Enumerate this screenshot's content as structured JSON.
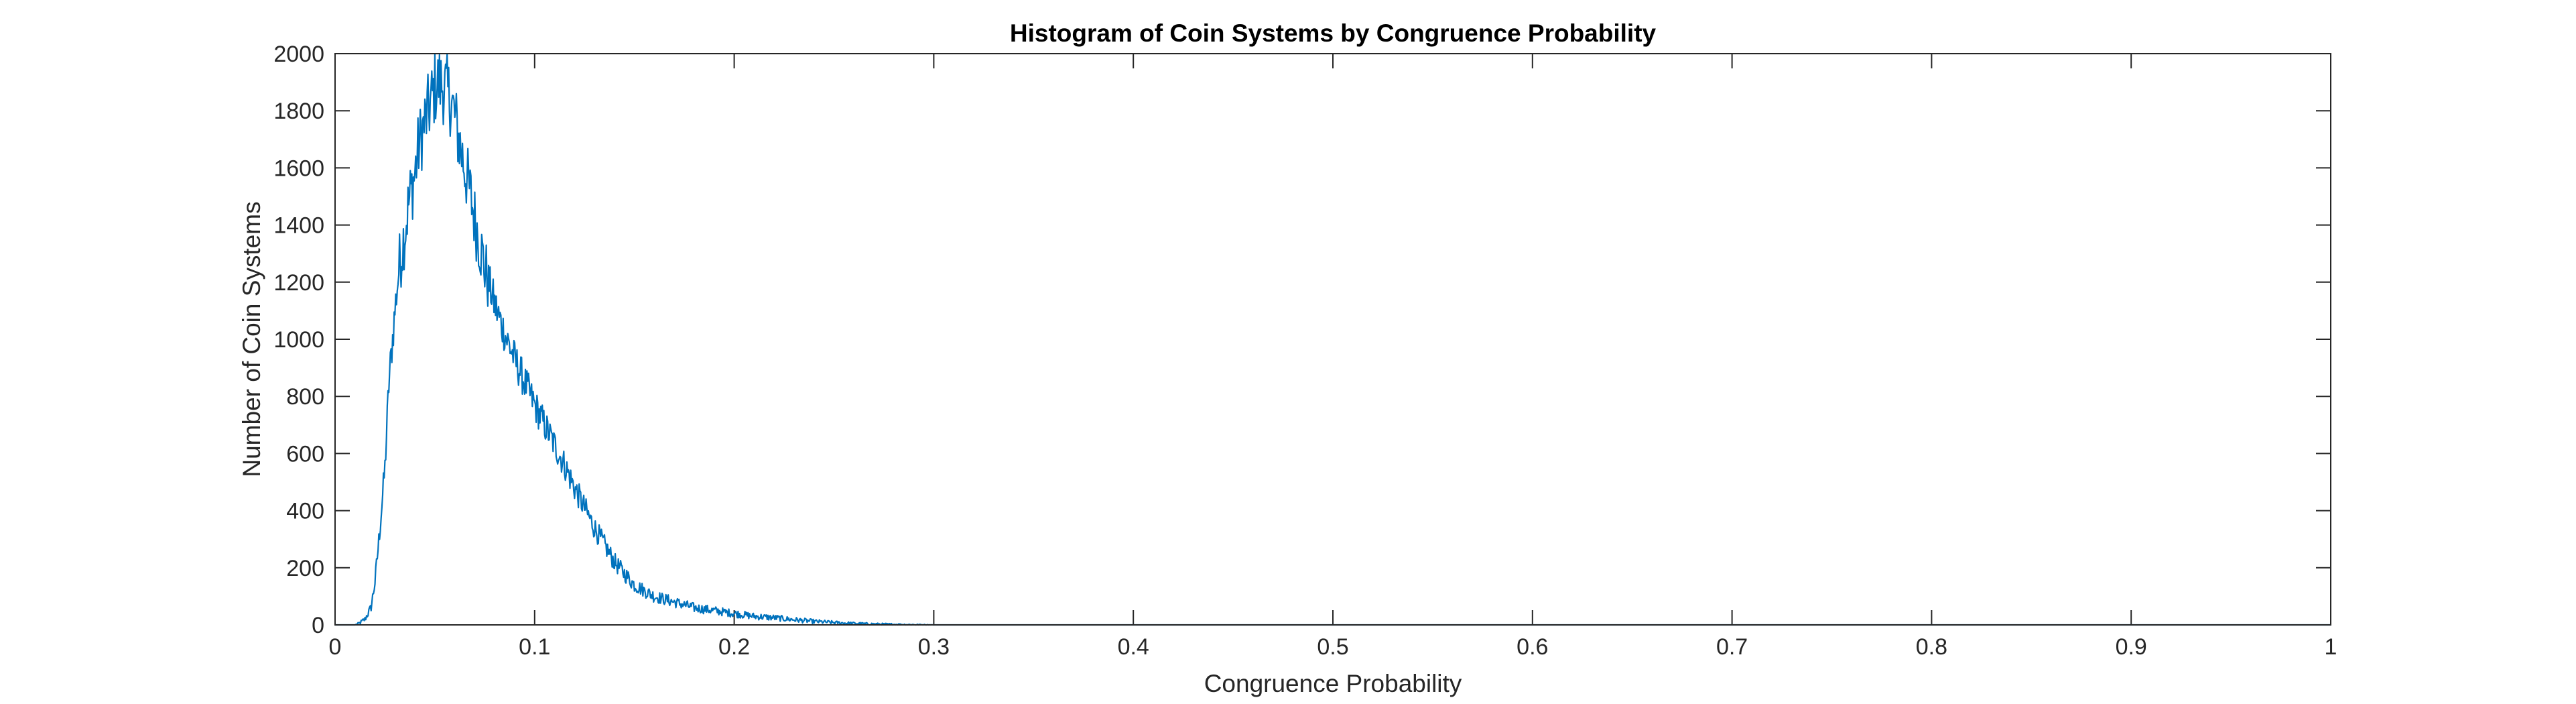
{
  "chart_data": {
    "type": "line",
    "title": "Histogram of Coin Systems by Congruence Probability",
    "xlabel": "Congruence Probability",
    "ylabel": "Number of Coin Systems",
    "xlim": [
      0,
      1
    ],
    "ylim": [
      0,
      2000
    ],
    "xticks": [
      0,
      0.1,
      0.2,
      0.3,
      0.4,
      0.5,
      0.6,
      0.7,
      0.8,
      0.9,
      1
    ],
    "yticks": [
      0,
      200,
      400,
      600,
      800,
      1000,
      1200,
      1400,
      1600,
      1800,
      2000
    ],
    "xtick_labels": [
      "0",
      "0.1",
      "0.2",
      "0.3",
      "0.4",
      "0.5",
      "0.6",
      "0.7",
      "0.8",
      "0.9",
      "1"
    ],
    "ytick_labels": [
      "0",
      "200",
      "400",
      "600",
      "800",
      "1000",
      "1200",
      "1400",
      "1600",
      "1800",
      "2000"
    ],
    "grid": false,
    "series_color": "#0072BD",
    "series": [
      {
        "x": [
          0.0,
          0.01,
          0.012,
          0.015,
          0.018,
          0.02,
          0.022,
          0.025,
          0.027,
          0.03,
          0.032,
          0.035,
          0.037,
          0.04,
          0.042,
          0.045,
          0.048,
          0.05,
          0.052,
          0.055,
          0.058,
          0.06,
          0.062,
          0.065,
          0.068,
          0.07,
          0.075,
          0.08,
          0.085,
          0.09,
          0.095,
          0.1,
          0.105,
          0.11,
          0.115,
          0.12,
          0.125,
          0.13,
          0.135,
          0.14,
          0.145,
          0.15,
          0.155,
          0.16,
          0.17,
          0.18,
          0.19,
          0.2,
          0.21,
          0.22,
          0.23,
          0.24,
          0.25,
          0.26,
          0.27,
          0.28,
          0.29,
          0.3,
          0.35,
          0.4,
          0.5,
          0.6,
          0.7,
          0.8,
          0.9,
          1.0
        ],
        "values": [
          0,
          0,
          5,
          20,
          60,
          150,
          300,
          550,
          850,
          1100,
          1250,
          1380,
          1480,
          1580,
          1680,
          1760,
          1830,
          1880,
          1900,
          1880,
          1840,
          1780,
          1700,
          1600,
          1500,
          1420,
          1250,
          1120,
          1020,
          930,
          850,
          770,
          700,
          630,
          560,
          480,
          410,
          340,
          280,
          220,
          180,
          140,
          120,
          100,
          80,
          60,
          50,
          40,
          30,
          25,
          18,
          12,
          8,
          5,
          3,
          2,
          1,
          0,
          0,
          0,
          0,
          0,
          0,
          0,
          0,
          0
        ]
      }
    ]
  }
}
